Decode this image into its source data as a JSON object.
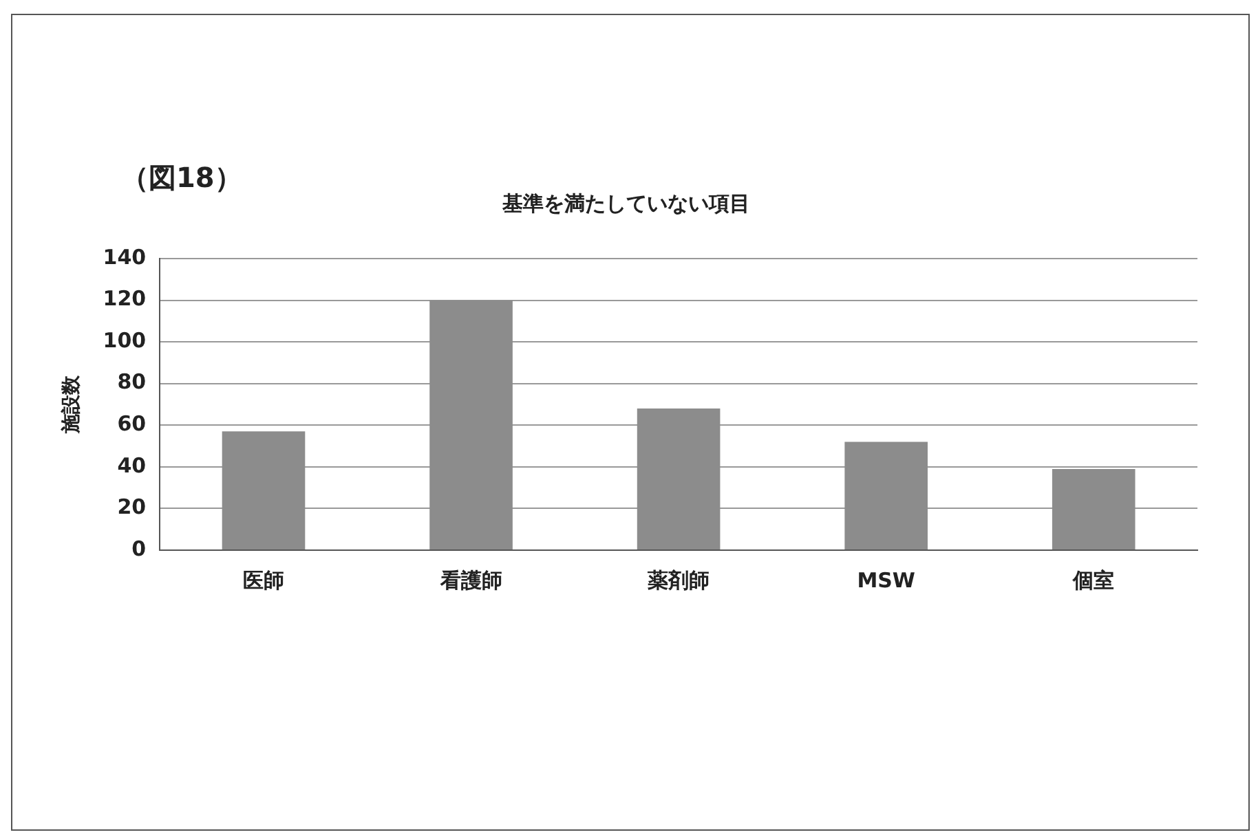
{
  "chart_data": {
    "type": "bar",
    "title": "基準を満たしていない項目",
    "annotations": [
      "（図18）"
    ],
    "ylabel": "施設数",
    "categories": [
      "医師",
      "看護師",
      "薬剤師",
      "MSW",
      "個室"
    ],
    "values": [
      57,
      120,
      68,
      52,
      39
    ],
    "color": "#8c8c8c",
    "ylim": [
      0,
      140
    ],
    "yticks": [
      0,
      20,
      40,
      60,
      80,
      100,
      120,
      140
    ],
    "grid": "y",
    "legend": false
  }
}
